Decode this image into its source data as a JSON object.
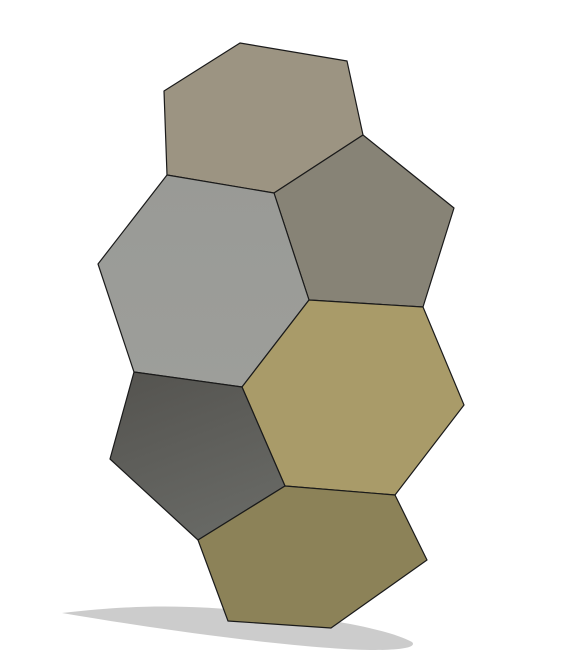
{
  "scene": {
    "background": "#ffffff",
    "shadow_color": "#c9c9c9",
    "outline_color": "#1a1a1a",
    "tiles": [
      {
        "name": "top-hexagon-tile",
        "shape": "hexagon",
        "color": "#9c9482"
      },
      {
        "name": "upper-right-pentagon-tile",
        "shape": "pentagon",
        "color": "#878376"
      },
      {
        "name": "left-heptagon-tile",
        "shape": "heptagon",
        "color": "#9a9b97"
      },
      {
        "name": "middle-right-hexagon-tile",
        "shape": "hexagon",
        "color": "#a99b69"
      },
      {
        "name": "lower-left-pentagon-tile",
        "shape": "pentagon",
        "color": "#5a5a56"
      },
      {
        "name": "bottom-hexagon-tile",
        "shape": "hexagon",
        "color": "#8c8258"
      }
    ]
  }
}
